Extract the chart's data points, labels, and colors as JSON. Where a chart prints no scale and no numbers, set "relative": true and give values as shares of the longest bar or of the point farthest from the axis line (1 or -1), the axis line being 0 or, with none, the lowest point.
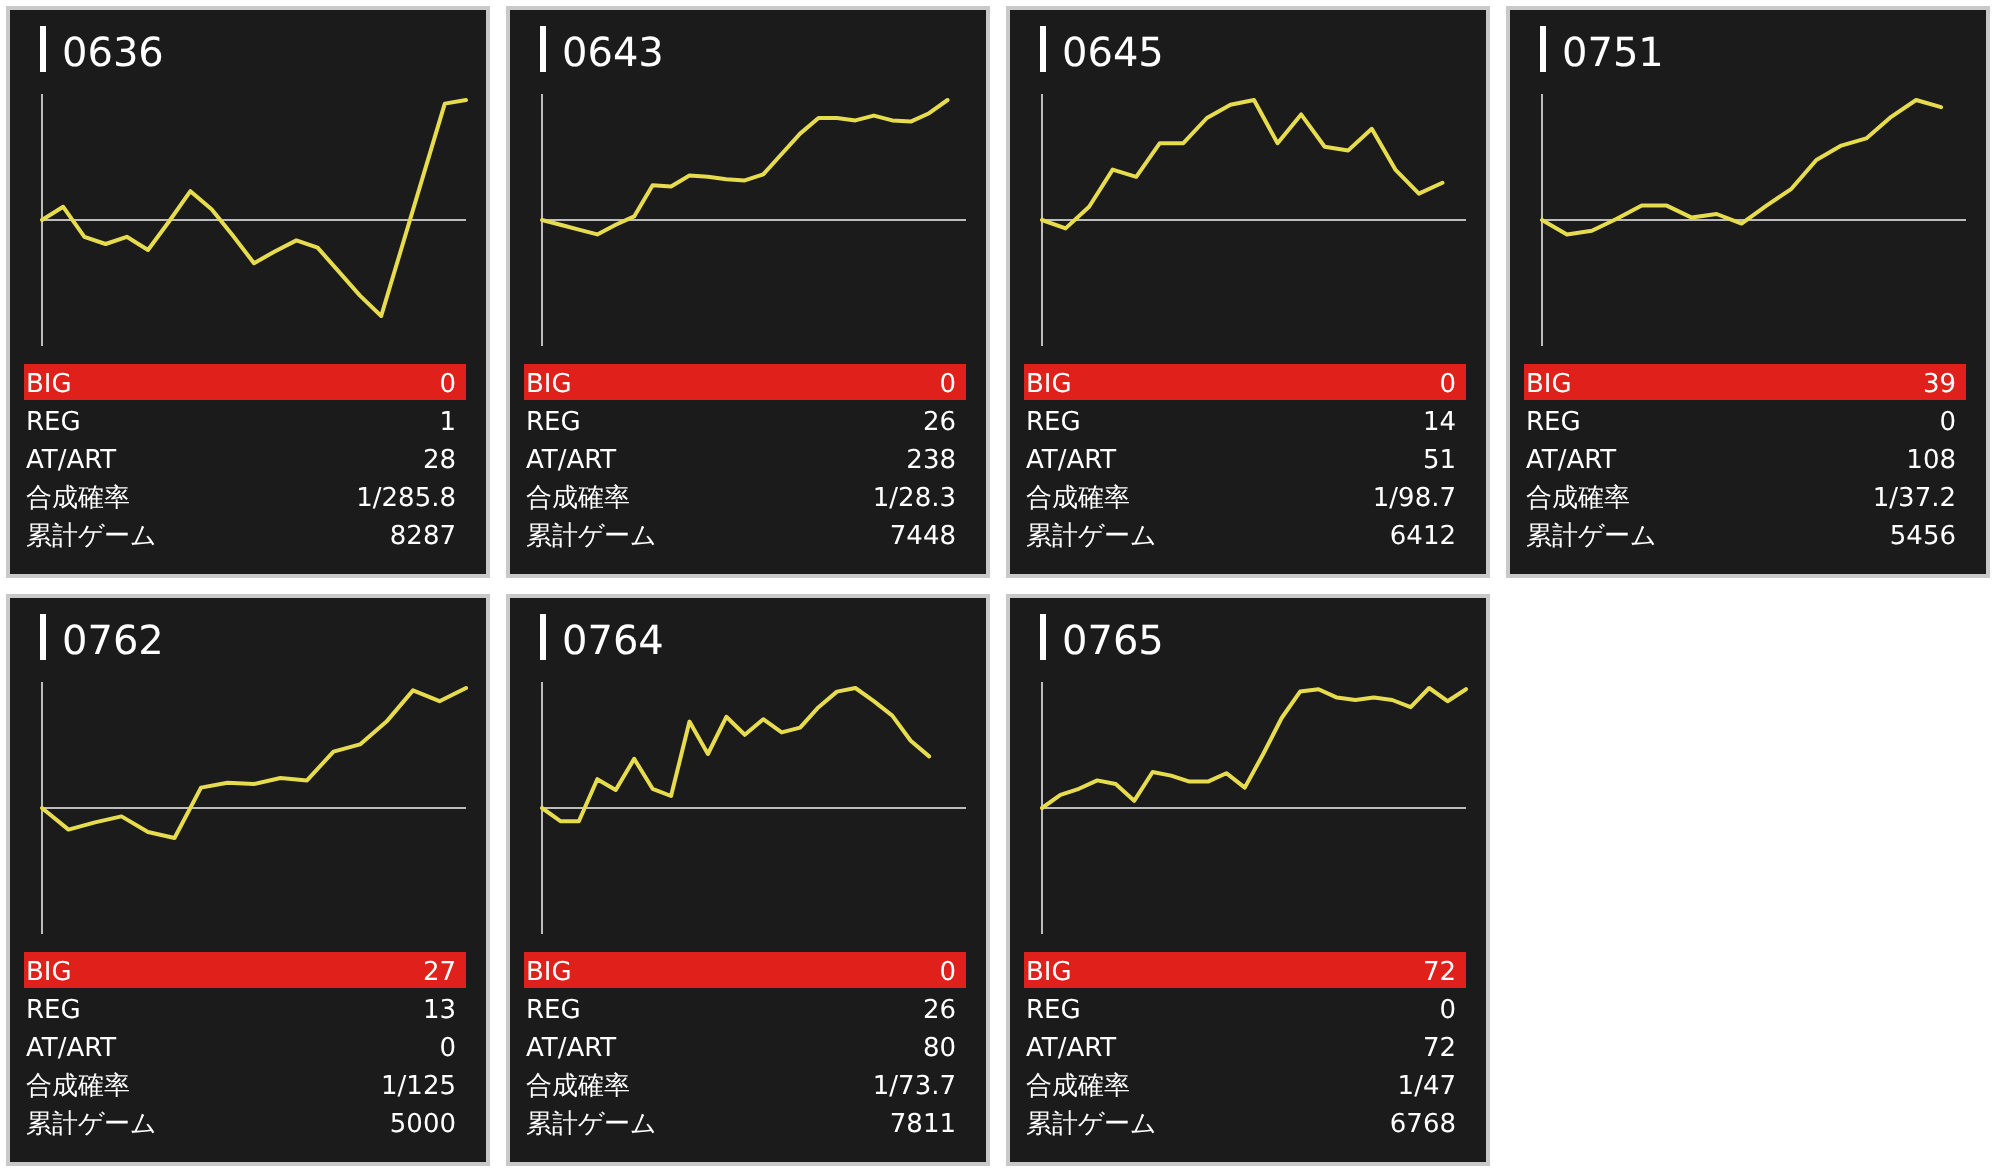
{
  "chart_data": [
    {
      "type": "line",
      "title": "0636",
      "relative": true,
      "categories": [
        null,
        null,
        null,
        null,
        null,
        null,
        null,
        null,
        null,
        null,
        null,
        null,
        null,
        null,
        null,
        null,
        null,
        null,
        null,
        null,
        null
      ],
      "series": [
        {
          "color": "#e6dc4e",
          "values": [
            0,
            0.11,
            -0.14,
            -0.2,
            -0.14,
            -0.25,
            -0.01,
            0.24,
            0.09,
            -0.13,
            -0.36,
            -0.26,
            -0.17,
            -0.23,
            -0.43,
            -0.63,
            -0.8,
            -0.21,
            0.38,
            0.97,
            1
          ]
        }
      ],
      "annotations": [
        "BIG",
        "0",
        "REG",
        "1",
        "AT/ART",
        "28",
        "合成確率",
        "1/285.8",
        "累計ゲーム",
        "8287"
      ]
    },
    {
      "type": "line",
      "title": "0643",
      "relative": true,
      "categories": [
        null,
        null,
        null,
        null,
        null,
        null,
        null,
        null,
        null,
        null,
        null,
        null,
        null,
        null,
        null,
        null,
        null,
        null,
        null,
        null,
        null,
        null,
        null,
        null
      ],
      "series": [
        {
          "color": "#e6dc4e",
          "values": [
            0,
            -0.04,
            -0.08,
            -0.12,
            -0.04,
            0.03,
            0.29,
            0.28,
            0.37,
            0.36,
            0.34,
            0.33,
            0.38,
            0.55,
            0.72,
            0.85,
            0.85,
            0.83,
            0.87,
            0.83,
            0.82,
            0.89,
            1,
            null
          ]
        }
      ],
      "annotations": [
        "BIG",
        "0",
        "REG",
        "26",
        "AT/ART",
        "238",
        "合成確率",
        "1/28.3",
        "累計ゲーム",
        "7448"
      ]
    },
    {
      "type": "line",
      "title": "0645",
      "relative": true,
      "categories": [
        null,
        null,
        null,
        null,
        null,
        null,
        null,
        null,
        null,
        null,
        null,
        null,
        null,
        null,
        null,
        null,
        null,
        null,
        null
      ],
      "series": [
        {
          "color": "#e6dc4e",
          "values": [
            0,
            -0.07,
            0.11,
            0.42,
            0.36,
            0.64,
            0.64,
            0.85,
            0.96,
            1,
            0.64,
            0.88,
            0.61,
            0.58,
            0.76,
            0.42,
            0.22,
            0.31,
            null
          ]
        }
      ],
      "annotations": [
        "BIG",
        "0",
        "REG",
        "14",
        "AT/ART",
        "51",
        "合成確率",
        "1/98.7",
        "累計ゲーム",
        "6412"
      ]
    },
    {
      "type": "line",
      "title": "0751",
      "relative": true,
      "categories": [
        null,
        null,
        null,
        null,
        null,
        null,
        null,
        null,
        null,
        null,
        null,
        null,
        null,
        null,
        null,
        null,
        null,
        null
      ],
      "series": [
        {
          "color": "#e6dc4e",
          "values": [
            0,
            -0.12,
            -0.09,
            0.01,
            0.12,
            0.12,
            0.02,
            0.05,
            -0.03,
            0.12,
            0.26,
            0.5,
            0.62,
            0.68,
            0.86,
            1,
            0.94,
            null
          ]
        }
      ],
      "annotations": [
        "BIG",
        "39",
        "REG",
        "0",
        "AT/ART",
        "108",
        "合成確率",
        "1/37.2",
        "累計ゲーム",
        "5456"
      ]
    },
    {
      "type": "line",
      "title": "0762",
      "relative": true,
      "categories": [
        null,
        null,
        null,
        null,
        null,
        null,
        null,
        null,
        null,
        null,
        null,
        null,
        null,
        null,
        null,
        null,
        null
      ],
      "series": [
        {
          "color": "#e6dc4e",
          "values": [
            0,
            -0.18,
            -0.12,
            -0.07,
            -0.2,
            -0.25,
            0.17,
            0.21,
            0.2,
            0.25,
            0.23,
            0.47,
            0.53,
            0.72,
            0.98,
            0.89,
            1
          ]
        }
      ],
      "annotations": [
        "BIG",
        "27",
        "REG",
        "13",
        "AT/ART",
        "0",
        "合成確率",
        "1/125",
        "累計ゲーム",
        "5000"
      ]
    },
    {
      "type": "line",
      "title": "0764",
      "relative": true,
      "categories": [
        null,
        null,
        null,
        null,
        null,
        null,
        null,
        null,
        null,
        null,
        null,
        null,
        null,
        null,
        null,
        null,
        null,
        null,
        null,
        null,
        null,
        null,
        null,
        null
      ],
      "series": [
        {
          "color": "#e6dc4e",
          "values": [
            0,
            -0.11,
            -0.11,
            0.24,
            0.15,
            0.41,
            0.16,
            0.1,
            0.72,
            0.45,
            0.76,
            0.61,
            0.74,
            0.63,
            0.67,
            0.84,
            0.97,
            1,
            0.89,
            0.77,
            0.56,
            0.43,
            null,
            null
          ]
        }
      ],
      "annotations": [
        "BIG",
        "0",
        "REG",
        "26",
        "AT/ART",
        "80",
        "合成確率",
        "1/73.7",
        "累計ゲーム",
        "7811"
      ]
    },
    {
      "type": "line",
      "title": "0765",
      "relative": true,
      "categories": [
        null,
        null,
        null,
        null,
        null,
        null,
        null,
        null,
        null,
        null,
        null,
        null,
        null,
        null,
        null,
        null,
        null,
        null,
        null,
        null,
        null,
        null,
        null,
        null
      ],
      "series": [
        {
          "color": "#e6dc4e",
          "values": [
            0,
            0.11,
            0.16,
            0.23,
            0.2,
            0.06,
            0.3,
            0.27,
            0.22,
            0.22,
            0.29,
            0.17,
            0.45,
            0.75,
            0.97,
            0.99,
            0.92,
            0.9,
            0.92,
            0.9,
            0.84,
            1,
            0.89,
            0.99
          ]
        }
      ],
      "annotations": [
        "BIG",
        "72",
        "REG",
        "0",
        "AT/ART",
        "72",
        "合成確率",
        "1/47",
        "累計ゲーム",
        "6768"
      ]
    }
  ]
}
